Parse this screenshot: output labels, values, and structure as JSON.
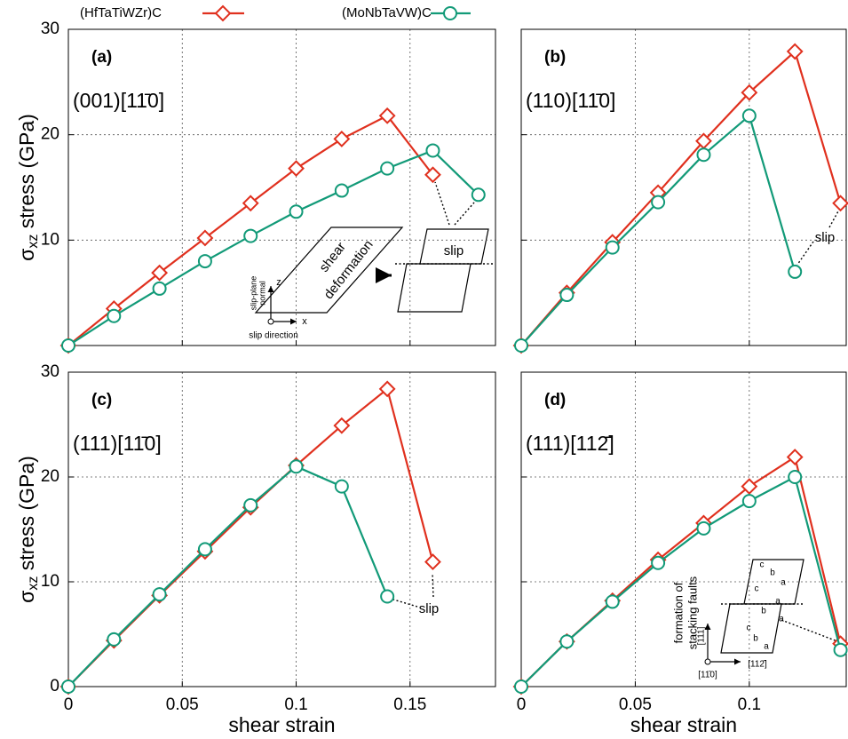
{
  "chart_data": [
    {
      "type": "line",
      "title": "(a)",
      "subtitle": "(001)[11̄0]",
      "ylabel": {
        "symbol": "σ",
        "subscript": "xz",
        "text": " stress (GPa)"
      },
      "xlim": [
        0,
        0.1875
      ],
      "ylim": [
        0,
        30
      ],
      "xticks": [
        0,
        0.05,
        0.1,
        0.15
      ],
      "yticks": [
        10,
        20,
        30
      ],
      "xtick_labels": false,
      "ytick_labels": true,
      "grid": true,
      "series": [
        {
          "name": "(HfTaTiWZr)C",
          "color": "#e0301e",
          "marker": "diamond",
          "x": [
            0,
            0.02,
            0.04,
            0.06,
            0.08,
            0.1,
            0.12,
            0.14,
            0.16
          ],
          "values": [
            0,
            3.5,
            6.9,
            10.2,
            13.5,
            16.8,
            19.6,
            21.8,
            16.2
          ]
        },
        {
          "name": "(MoNbTaVW)C",
          "color": "#129a78",
          "marker": "circle",
          "x": [
            0,
            0.02,
            0.04,
            0.06,
            0.08,
            0.1,
            0.12,
            0.14,
            0.16,
            0.18
          ],
          "values": [
            0,
            2.8,
            5.4,
            8.0,
            10.4,
            12.7,
            14.7,
            16.8,
            18.5,
            14.3
          ]
        }
      ],
      "annotations": [
        "shear",
        "deformation",
        "slip",
        "slip-plane",
        "normal",
        "slip direction",
        "z",
        "x"
      ]
    },
    {
      "type": "line",
      "title": "(b)",
      "subtitle": "(110)[11̄0]",
      "xlim": [
        0,
        0.1425
      ],
      "ylim": [
        0,
        30
      ],
      "xticks": [
        0,
        0.05,
        0.1
      ],
      "yticks": [
        10,
        20,
        30
      ],
      "xtick_labels": false,
      "ytick_labels": false,
      "grid": true,
      "series": [
        {
          "name": "(HfTaTiWZr)C",
          "color": "#e0301e",
          "marker": "diamond",
          "x": [
            0,
            0.02,
            0.04,
            0.06,
            0.08,
            0.1,
            0.12,
            0.14
          ],
          "values": [
            0,
            5.0,
            9.8,
            14.5,
            19.4,
            24.0,
            27.9,
            13.5
          ]
        },
        {
          "name": "(MoNbTaVW)C",
          "color": "#129a78",
          "marker": "circle",
          "x": [
            0,
            0.02,
            0.04,
            0.06,
            0.08,
            0.1,
            0.12
          ],
          "values": [
            0,
            4.8,
            9.3,
            13.6,
            18.1,
            21.8,
            7.0
          ]
        }
      ],
      "annotations": [
        "slip"
      ]
    },
    {
      "type": "line",
      "title": "(c)",
      "subtitle": "(111)[11̄0]",
      "ylabel": {
        "symbol": "σ",
        "subscript": "xz",
        "text": " stress (GPa)"
      },
      "xlabel": "shear strain",
      "xlim": [
        0,
        0.1875
      ],
      "ylim": [
        0,
        30
      ],
      "xticks": [
        0,
        0.05,
        0.1,
        0.15
      ],
      "yticks": [
        0,
        10,
        20,
        30
      ],
      "xtick_labels": true,
      "ytick_labels": true,
      "grid": true,
      "series": [
        {
          "name": "(HfTaTiWZr)C",
          "color": "#e0301e",
          "marker": "diamond",
          "x": [
            0,
            0.02,
            0.04,
            0.06,
            0.08,
            0.1,
            0.12,
            0.14,
            0.16
          ],
          "values": [
            0,
            4.4,
            8.7,
            12.9,
            17.1,
            21.1,
            24.9,
            28.4,
            11.9
          ]
        },
        {
          "name": "(MoNbTaVW)C",
          "color": "#129a78",
          "marker": "circle",
          "x": [
            0,
            0.02,
            0.04,
            0.06,
            0.08,
            0.1,
            0.12,
            0.14
          ],
          "values": [
            0,
            4.5,
            8.8,
            13.1,
            17.3,
            21.0,
            19.1,
            8.6
          ]
        }
      ],
      "annotations": [
        "slip"
      ]
    },
    {
      "type": "line",
      "title": "(d)",
      "subtitle": "(111)[112̄]",
      "xlabel": "shear strain",
      "xlim": [
        0,
        0.1425
      ],
      "ylim": [
        0,
        30
      ],
      "xticks": [
        0,
        0.05,
        0.1
      ],
      "yticks": [
        0,
        10,
        20,
        30
      ],
      "xtick_labels": true,
      "ytick_labels": false,
      "grid": true,
      "series": [
        {
          "name": "(HfTaTiWZr)C",
          "color": "#e0301e",
          "marker": "diamond",
          "x": [
            0,
            0.02,
            0.04,
            0.06,
            0.08,
            0.1,
            0.12,
            0.14
          ],
          "values": [
            0,
            4.3,
            8.2,
            12.1,
            15.6,
            19.1,
            21.9,
            4.1
          ]
        },
        {
          "name": "(MoNbTaVW)C",
          "color": "#129a78",
          "marker": "circle",
          "x": [
            0,
            0.02,
            0.04,
            0.06,
            0.08,
            0.1,
            0.12,
            0.14
          ],
          "values": [
            0,
            4.3,
            8.1,
            11.8,
            15.1,
            17.7,
            20.0,
            3.5
          ]
        }
      ],
      "annotations": [
        "formation of",
        "stacking faults",
        "[111]",
        "[112̄]",
        "[11̄0]",
        "c",
        "b",
        "a",
        "c",
        "a",
        "b",
        "a",
        "c",
        "b",
        "a"
      ]
    }
  ]
}
